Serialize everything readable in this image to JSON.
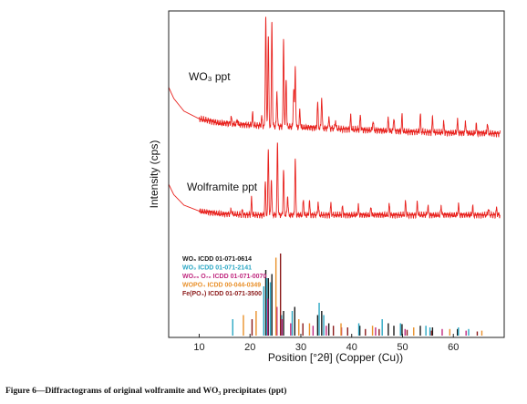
{
  "chart_data": {
    "type": "line",
    "xlabel": "Position [°2θ] (Copper (Cu))",
    "ylabel": "Intensity (cps)",
    "xlim": [
      4,
      70
    ],
    "x_ticks": [
      "10",
      "20",
      "30",
      "40",
      "50",
      "60"
    ],
    "x_tick_values": [
      10,
      20,
      30,
      40,
      50,
      60
    ],
    "grid": false,
    "series": [
      {
        "name": "WO₃ ppt",
        "color": "#e8211d",
        "baseline": [
          [
            4,
            0.53
          ],
          [
            5,
            0.61
          ],
          [
            7,
            0.7
          ],
          [
            10,
            0.755
          ],
          [
            14,
            0.785
          ],
          [
            20,
            0.8
          ],
          [
            30,
            0.815
          ],
          [
            40,
            0.83
          ],
          [
            50,
            0.845
          ],
          [
            60,
            0.855
          ],
          [
            69,
            0.86
          ]
        ],
        "peaks": [
          [
            16.3,
            0.05
          ],
          [
            17.5,
            0.035
          ],
          [
            20.5,
            0.08
          ],
          [
            22.3,
            0.06
          ],
          [
            23.1,
            0.78
          ],
          [
            23.6,
            0.65
          ],
          [
            24.3,
            0.75
          ],
          [
            25.3,
            0.25
          ],
          [
            26.6,
            0.62
          ],
          [
            27.1,
            0.35
          ],
          [
            28.6,
            0.28
          ],
          [
            28.9,
            0.42
          ],
          [
            29.8,
            0.12
          ],
          [
            33.3,
            0.18
          ],
          [
            34.1,
            0.22
          ],
          [
            35.5,
            0.08
          ],
          [
            36.8,
            0.06
          ],
          [
            39.8,
            0.09
          ],
          [
            41.7,
            0.1
          ],
          [
            44.2,
            0.07
          ],
          [
            47.2,
            0.09
          ],
          [
            48.3,
            0.1
          ],
          [
            49.9,
            0.11
          ],
          [
            53.5,
            0.12
          ],
          [
            55.9,
            0.1
          ],
          [
            58.1,
            0.07
          ],
          [
            60.8,
            0.09
          ],
          [
            62.4,
            0.08
          ],
          [
            64.5,
            0.06
          ],
          [
            66.7,
            0.07
          ]
        ]
      },
      {
        "name": "Wolframite ppt",
        "color": "#e8211d",
        "baseline": [
          [
            4,
            0.43
          ],
          [
            5,
            0.51
          ],
          [
            7,
            0.59
          ],
          [
            10,
            0.635
          ],
          [
            14,
            0.655
          ],
          [
            20,
            0.665
          ],
          [
            30,
            0.665
          ],
          [
            40,
            0.665
          ],
          [
            50,
            0.665
          ],
          [
            60,
            0.665
          ],
          [
            69,
            0.665
          ]
        ],
        "peaks": [
          [
            16.3,
            0.04
          ],
          [
            18.5,
            0.03
          ],
          [
            20.3,
            0.12
          ],
          [
            23.0,
            0.25
          ],
          [
            23.6,
            0.5
          ],
          [
            24.2,
            0.28
          ],
          [
            25.4,
            0.55
          ],
          [
            26.6,
            0.35
          ],
          [
            27.4,
            0.15
          ],
          [
            28.9,
            0.42
          ],
          [
            30.5,
            0.12
          ],
          [
            31.7,
            0.1
          ],
          [
            33.4,
            0.1
          ],
          [
            35.9,
            0.08
          ],
          [
            38.2,
            0.06
          ],
          [
            41.3,
            0.07
          ],
          [
            43.8,
            0.06
          ],
          [
            47.4,
            0.08
          ],
          [
            50.6,
            0.1
          ],
          [
            52.9,
            0.09
          ],
          [
            55.0,
            0.07
          ],
          [
            57.6,
            0.07
          ],
          [
            61.0,
            0.08
          ],
          [
            63.8,
            0.06
          ],
          [
            66.9,
            0.05
          ],
          [
            68.5,
            0.05
          ]
        ]
      }
    ],
    "reference_patterns": [
      {
        "name": "WO₃ ICDD 01-071-0614",
        "color": "#1a1a1a",
        "peaks": [
          [
            23.1,
            0.8
          ],
          [
            23.6,
            0.7
          ],
          [
            24.3,
            0.75
          ],
          [
            26.6,
            0.3
          ],
          [
            28.8,
            0.35
          ],
          [
            33.3,
            0.25
          ],
          [
            34.1,
            0.3
          ],
          [
            35.5,
            0.15
          ],
          [
            41.6,
            0.12
          ],
          [
            47.2,
            0.15
          ],
          [
            48.3,
            0.12
          ],
          [
            49.9,
            0.14
          ],
          [
            53.5,
            0.12
          ],
          [
            55.9,
            0.1
          ],
          [
            60.8,
            0.08
          ]
        ]
      },
      {
        "name": "WO₃ ICDD 01-071-2141",
        "color": "#2aa7c4",
        "peaks": [
          [
            16.6,
            0.2
          ],
          [
            22.7,
            0.6
          ],
          [
            23.3,
            0.7
          ],
          [
            24.0,
            0.65
          ],
          [
            26.2,
            0.25
          ],
          [
            28.3,
            0.3
          ],
          [
            33.6,
            0.4
          ],
          [
            34.5,
            0.25
          ],
          [
            41.4,
            0.15
          ],
          [
            46.0,
            0.2
          ],
          [
            49.6,
            0.15
          ],
          [
            54.6,
            0.12
          ],
          [
            55.4,
            0.1
          ],
          [
            61.0,
            0.1
          ],
          [
            63.0,
            0.08
          ]
        ]
      },
      {
        "name": "WO₂₉ O₇₂ ICDD 01-071-0070",
        "color": "#c0287f",
        "peaks": [
          [
            23.5,
            0.45
          ],
          [
            25.3,
            0.35
          ],
          [
            26.3,
            0.2
          ],
          [
            28.0,
            0.15
          ],
          [
            32.4,
            0.12
          ],
          [
            35.0,
            0.12
          ],
          [
            38.0,
            0.1
          ],
          [
            44.7,
            0.1
          ],
          [
            50.5,
            0.08
          ],
          [
            57.8,
            0.08
          ],
          [
            62.5,
            0.06
          ]
        ]
      },
      {
        "name": "WOPO₄ ICDD 00-044-0349",
        "color": "#e9902a",
        "peaks": [
          [
            18.7,
            0.25
          ],
          [
            21.2,
            0.3
          ],
          [
            25.1,
            0.95
          ],
          [
            29.6,
            0.2
          ],
          [
            31.7,
            0.15
          ],
          [
            37.9,
            0.15
          ],
          [
            44.1,
            0.12
          ],
          [
            52.2,
            0.1
          ],
          [
            59.3,
            0.08
          ],
          [
            65.6,
            0.06
          ]
        ]
      },
      {
        "name": "Fe(PO₄) ICDD 01-071-3500",
        "color": "#8b1a1a",
        "peaks": [
          [
            20.4,
            0.2
          ],
          [
            26.0,
            1.0
          ],
          [
            30.4,
            0.15
          ],
          [
            36.4,
            0.12
          ],
          [
            39.2,
            0.1
          ],
          [
            42.7,
            0.08
          ],
          [
            45.4,
            0.08
          ],
          [
            50.9,
            0.07
          ],
          [
            55.7,
            0.06
          ],
          [
            64.7,
            0.05
          ]
        ]
      }
    ]
  },
  "caption": "Figure 6—Diffractograms of original wolframite and WO₃ precipitates (ppt)"
}
